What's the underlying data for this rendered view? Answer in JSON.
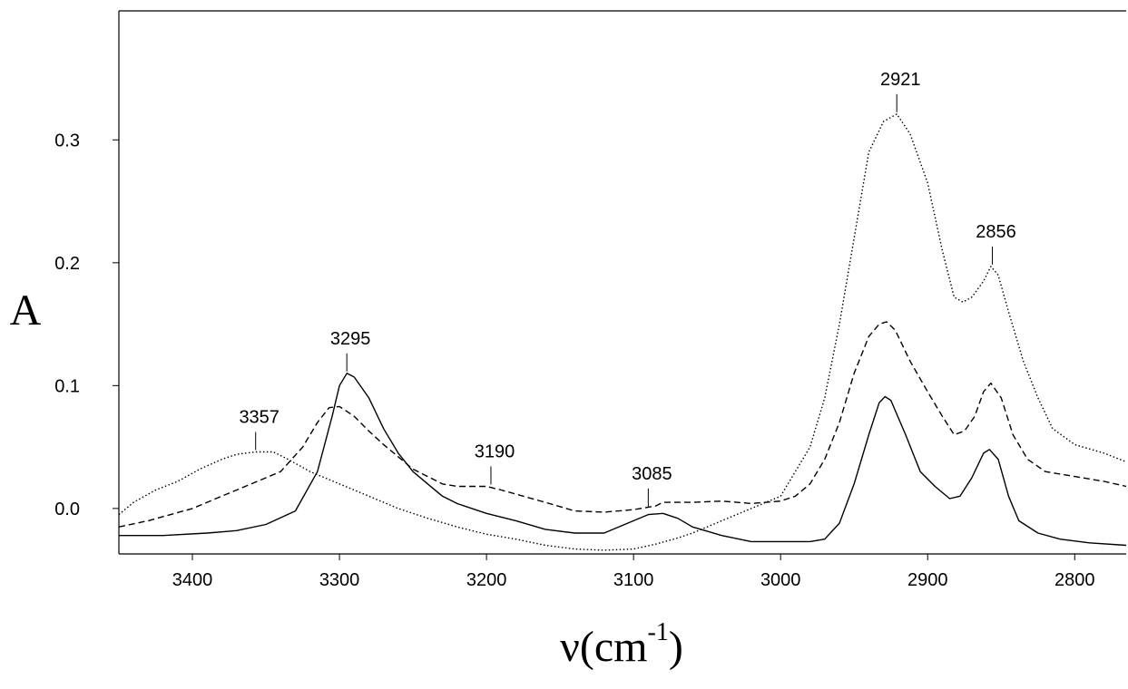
{
  "chart_data": {
    "type": "line",
    "title": "",
    "xlabel": "ν(cm-1)",
    "xlabel_parts": {
      "main": "ν(cm",
      "sup": "-1",
      "close": ")"
    },
    "ylabel": "A",
    "xlim": [
      3450,
      2765
    ],
    "ylim": [
      -0.037,
      0.405
    ],
    "x_reversed": true,
    "grid": false,
    "legend": "none",
    "x_ticks": [
      3400,
      3300,
      3200,
      3100,
      3000,
      2900,
      2800
    ],
    "x_tick_labels": [
      "3400",
      "3300",
      "3200",
      "3100",
      "3000",
      "2900",
      "2800"
    ],
    "y_ticks": [
      0.0,
      0.1,
      0.2,
      0.3
    ],
    "y_tick_labels": [
      "0.0",
      "0.1",
      "0.2",
      "0.3"
    ],
    "series": [
      {
        "style": "solid",
        "points": [
          [
            3450,
            -0.022
          ],
          [
            3420,
            -0.022
          ],
          [
            3390,
            -0.02
          ],
          [
            3370,
            -0.018
          ],
          [
            3350,
            -0.013
          ],
          [
            3330,
            -0.002
          ],
          [
            3315,
            0.03
          ],
          [
            3305,
            0.075
          ],
          [
            3300,
            0.1
          ],
          [
            3295,
            0.11
          ],
          [
            3290,
            0.107
          ],
          [
            3280,
            0.09
          ],
          [
            3270,
            0.065
          ],
          [
            3260,
            0.045
          ],
          [
            3250,
            0.03
          ],
          [
            3240,
            0.02
          ],
          [
            3230,
            0.01
          ],
          [
            3220,
            0.004
          ],
          [
            3200,
            -0.004
          ],
          [
            3180,
            -0.01
          ],
          [
            3160,
            -0.017
          ],
          [
            3140,
            -0.02
          ],
          [
            3120,
            -0.02
          ],
          [
            3100,
            -0.01
          ],
          [
            3090,
            -0.005
          ],
          [
            3080,
            -0.004
          ],
          [
            3070,
            -0.008
          ],
          [
            3060,
            -0.015
          ],
          [
            3040,
            -0.022
          ],
          [
            3020,
            -0.027
          ],
          [
            3000,
            -0.027
          ],
          [
            2980,
            -0.027
          ],
          [
            2970,
            -0.025
          ],
          [
            2960,
            -0.012
          ],
          [
            2950,
            0.02
          ],
          [
            2940,
            0.06
          ],
          [
            2933,
            0.086
          ],
          [
            2929,
            0.091
          ],
          [
            2925,
            0.088
          ],
          [
            2915,
            0.06
          ],
          [
            2905,
            0.03
          ],
          [
            2895,
            0.018
          ],
          [
            2885,
            0.008
          ],
          [
            2878,
            0.01
          ],
          [
            2870,
            0.025
          ],
          [
            2862,
            0.045
          ],
          [
            2858,
            0.048
          ],
          [
            2852,
            0.04
          ],
          [
            2845,
            0.01
          ],
          [
            2838,
            -0.01
          ],
          [
            2825,
            -0.02
          ],
          [
            2810,
            -0.025
          ],
          [
            2790,
            -0.028
          ],
          [
            2765,
            -0.03
          ]
        ]
      },
      {
        "style": "dashed",
        "points": [
          [
            3450,
            -0.015
          ],
          [
            3430,
            -0.01
          ],
          [
            3400,
            0.0
          ],
          [
            3380,
            0.01
          ],
          [
            3360,
            0.02
          ],
          [
            3340,
            0.03
          ],
          [
            3325,
            0.05
          ],
          [
            3315,
            0.07
          ],
          [
            3307,
            0.082
          ],
          [
            3300,
            0.083
          ],
          [
            3290,
            0.075
          ],
          [
            3280,
            0.063
          ],
          [
            3270,
            0.052
          ],
          [
            3260,
            0.042
          ],
          [
            3250,
            0.032
          ],
          [
            3240,
            0.026
          ],
          [
            3230,
            0.02
          ],
          [
            3220,
            0.018
          ],
          [
            3200,
            0.018
          ],
          [
            3190,
            0.015
          ],
          [
            3175,
            0.01
          ],
          [
            3160,
            0.005
          ],
          [
            3140,
            -0.002
          ],
          [
            3120,
            -0.003
          ],
          [
            3100,
            -0.001
          ],
          [
            3085,
            0.002
          ],
          [
            3080,
            0.005
          ],
          [
            3060,
            0.005
          ],
          [
            3040,
            0.006
          ],
          [
            3020,
            0.004
          ],
          [
            3000,
            0.006
          ],
          [
            2990,
            0.01
          ],
          [
            2980,
            0.02
          ],
          [
            2970,
            0.04
          ],
          [
            2960,
            0.07
          ],
          [
            2950,
            0.11
          ],
          [
            2940,
            0.14
          ],
          [
            2933,
            0.15
          ],
          [
            2928,
            0.152
          ],
          [
            2922,
            0.145
          ],
          [
            2912,
            0.12
          ],
          [
            2900,
            0.095
          ],
          [
            2890,
            0.075
          ],
          [
            2882,
            0.06
          ],
          [
            2875,
            0.063
          ],
          [
            2868,
            0.075
          ],
          [
            2862,
            0.095
          ],
          [
            2857,
            0.102
          ],
          [
            2850,
            0.09
          ],
          [
            2842,
            0.06
          ],
          [
            2832,
            0.04
          ],
          [
            2820,
            0.03
          ],
          [
            2800,
            0.026
          ],
          [
            2780,
            0.022
          ],
          [
            2765,
            0.018
          ]
        ]
      },
      {
        "style": "dotted",
        "points": [
          [
            3450,
            -0.005
          ],
          [
            3440,
            0.005
          ],
          [
            3425,
            0.015
          ],
          [
            3410,
            0.022
          ],
          [
            3395,
            0.032
          ],
          [
            3380,
            0.04
          ],
          [
            3370,
            0.044
          ],
          [
            3357,
            0.046
          ],
          [
            3345,
            0.046
          ],
          [
            3335,
            0.04
          ],
          [
            3320,
            0.03
          ],
          [
            3300,
            0.02
          ],
          [
            3280,
            0.01
          ],
          [
            3260,
            0.0
          ],
          [
            3240,
            -0.008
          ],
          [
            3220,
            -0.015
          ],
          [
            3200,
            -0.021
          ],
          [
            3180,
            -0.025
          ],
          [
            3160,
            -0.03
          ],
          [
            3140,
            -0.033
          ],
          [
            3120,
            -0.034
          ],
          [
            3100,
            -0.033
          ],
          [
            3085,
            -0.029
          ],
          [
            3070,
            -0.024
          ],
          [
            3060,
            -0.02
          ],
          [
            3040,
            -0.01
          ],
          [
            3020,
            0.0
          ],
          [
            3000,
            0.01
          ],
          [
            2990,
            0.03
          ],
          [
            2980,
            0.05
          ],
          [
            2970,
            0.09
          ],
          [
            2960,
            0.15
          ],
          [
            2950,
            0.22
          ],
          [
            2940,
            0.29
          ],
          [
            2930,
            0.315
          ],
          [
            2921,
            0.321
          ],
          [
            2912,
            0.305
          ],
          [
            2900,
            0.265
          ],
          [
            2890,
            0.21
          ],
          [
            2882,
            0.172
          ],
          [
            2876,
            0.168
          ],
          [
            2870,
            0.172
          ],
          [
            2862,
            0.185
          ],
          [
            2857,
            0.197
          ],
          [
            2852,
            0.19
          ],
          [
            2845,
            0.16
          ],
          [
            2835,
            0.12
          ],
          [
            2825,
            0.09
          ],
          [
            2815,
            0.065
          ],
          [
            2800,
            0.052
          ],
          [
            2780,
            0.045
          ],
          [
            2765,
            0.038
          ]
        ]
      }
    ],
    "annotations": [
      {
        "label": "3357",
        "x": 3357,
        "y": 0.046
      },
      {
        "label": "3295",
        "x": 3295,
        "y": 0.11
      },
      {
        "label": "3190",
        "x": 3197,
        "y": 0.018
      },
      {
        "label": "3085",
        "x": 3090,
        "y": 0.0
      },
      {
        "label": "2921",
        "x": 2921,
        "y": 0.321
      },
      {
        "label": "2856",
        "x": 2856,
        "y": 0.197
      }
    ]
  }
}
